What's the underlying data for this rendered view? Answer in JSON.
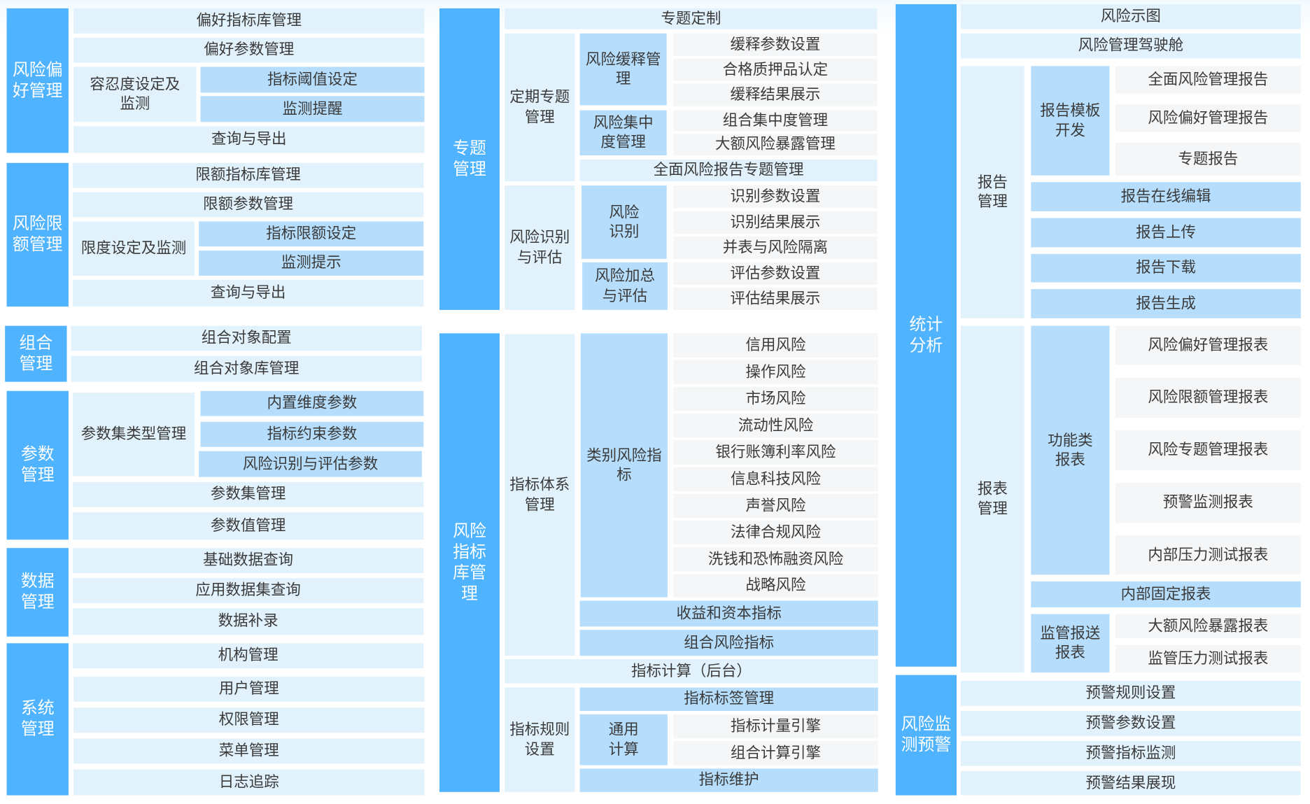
{
  "colors": {
    "header": "#4fb3ff",
    "light": "#e2f2fd",
    "medium": "#b6defc",
    "grey": "#f5f6f7"
  },
  "risk_appetite": {
    "title": "风险偏好管理",
    "items": [
      "偏好指标库管理",
      "偏好参数管理",
      "容忍度设定及监测",
      "指标阈值设定",
      "监测提醒",
      "查询与导出"
    ]
  },
  "risk_limit": {
    "title": "风险限额管理",
    "items": [
      "限额指标库管理",
      "限额参数管理",
      "限度设定及监测",
      "指标限额设定",
      "监测提示",
      "查询与导出"
    ]
  },
  "portfolio": {
    "title": "组合管理",
    "items": [
      "组合对象配置",
      "组合对象库管理"
    ]
  },
  "params": {
    "title": "参数管理",
    "items": [
      "参数集类型管理",
      "内置维度参数",
      "指标约束参数",
      "风险识别与评估参数",
      "参数集管理",
      "参数值管理"
    ]
  },
  "data_mgmt": {
    "title": "数据管理",
    "items": [
      "基础数据查询",
      "应用数据集查询",
      "数据补录"
    ]
  },
  "system": {
    "title": "系统管理",
    "items": [
      "机构管理",
      "用户管理",
      "权限管理",
      "菜单管理",
      "日志追踪"
    ]
  },
  "topic": {
    "title": "专题管理",
    "custom": "专题定制",
    "periodic": {
      "title": "定期专题管理",
      "mitigation": {
        "title": "风险缓释管理",
        "items": [
          "缓释参数设置",
          "合格质押品认定",
          "缓释结果展示"
        ]
      },
      "concentration": {
        "title": "风险集中度管理",
        "items": [
          "组合集中度管理",
          "大额风险暴露管理"
        ]
      },
      "full_report": "全面风险报告专题管理"
    },
    "identify_assess": {
      "title": "风险识别与评估",
      "identify": {
        "title": "风险识别",
        "items": [
          "识别参数设置",
          "识别结果展示",
          "并表与风险隔离"
        ]
      },
      "aggregate": {
        "title": "风险加总与评估",
        "items": [
          "评估参数设置",
          "评估结果展示"
        ]
      }
    }
  },
  "indicator_lib": {
    "title": "风险指标库管理",
    "system": {
      "title": "指标体系管理",
      "category": {
        "title": "类别风险指标",
        "items": [
          "信用风险",
          "操作风险",
          "市场风险",
          "流动性风险",
          "银行账簿利率风险",
          "信息科技风险",
          "声誉风险",
          "法律合规风险",
          "洗钱和恐怖融资风险",
          "战略风险"
        ]
      },
      "income_capital": "收益和资本指标",
      "portfolio_risk": "组合风险指标"
    },
    "calc": "指标计算（后台）",
    "rules": {
      "title": "指标规则设置",
      "tag": "指标标签管理",
      "general": {
        "title": "通用计算",
        "items": [
          "指标计量引擎",
          "组合计算引擎"
        ]
      },
      "maintain": "指标维护"
    }
  },
  "stats": {
    "title": "统计分析",
    "items": [
      "风险示图",
      "风险管理驾驶舱"
    ],
    "report": {
      "title": "报告管理",
      "template": {
        "title": "报告模板开发",
        "items": [
          "全面风险管理报告",
          "风险偏好管理报告",
          "专题报告"
        ]
      },
      "items": [
        "报告在线编辑",
        "报告上传",
        "报告下载",
        "报告生成"
      ]
    },
    "sheet": {
      "title": "报表管理",
      "functional": {
        "title": "功能类报表",
        "items": [
          "风险偏好管理报表",
          "风险限额管理报表",
          "风险专题管理报表",
          "预警监测报表",
          "内部压力测试报表"
        ]
      },
      "internal_fixed": "内部固定报表",
      "regulatory": {
        "title": "监管报送报表",
        "items": [
          "大额风险暴露报表",
          "监管压力测试报表"
        ]
      }
    }
  },
  "warning": {
    "title": "风险监测预警",
    "items": [
      "预警规则设置",
      "预警参数设置",
      "预警指标监测",
      "预警结果展现"
    ]
  }
}
